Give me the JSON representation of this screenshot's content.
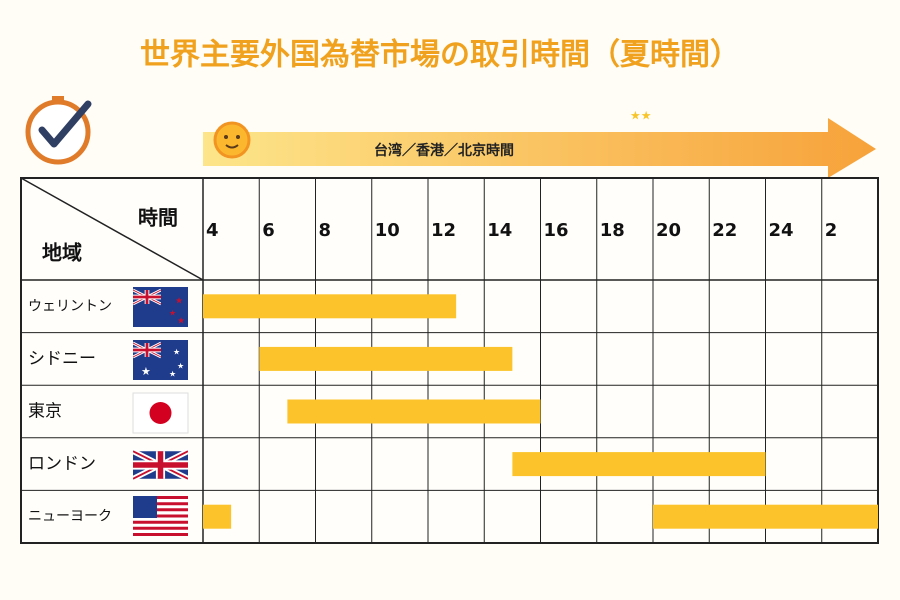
{
  "chart_data": {
    "type": "gantt",
    "title": "世界主要外国為替市場の取引時間（夏時間）",
    "timeline_label": "台湾／香港／北京時間",
    "x_label": "時間",
    "y_label": "地域",
    "xlim": [
      4,
      28
    ],
    "xticks": [
      4,
      6,
      8,
      10,
      12,
      14,
      16,
      18,
      20,
      22,
      24,
      {
        "value": 26,
        "label": "2"
      }
    ],
    "color": "#fcc42a",
    "rows": [
      {
        "name": "ウェリントン",
        "segments": [
          [
            4,
            13
          ]
        ]
      },
      {
        "name": "シドニー",
        "segments": [
          [
            6,
            15
          ]
        ]
      },
      {
        "name": "東京",
        "segments": [
          [
            7,
            16
          ]
        ]
      },
      {
        "name": "ロンドン",
        "segments": [
          [
            15,
            24
          ]
        ]
      },
      {
        "name": "ニューヨーク",
        "segments": [
          [
            4,
            5
          ],
          [
            20,
            28
          ]
        ]
      }
    ]
  }
}
